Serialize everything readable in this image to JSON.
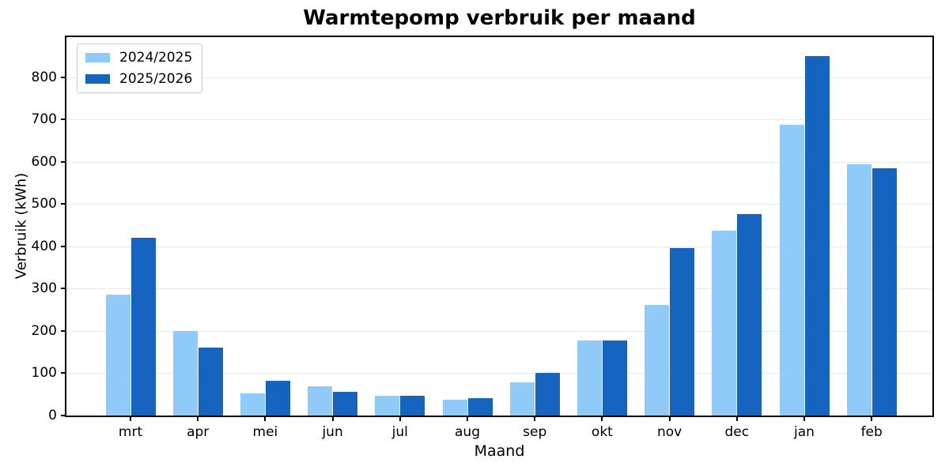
{
  "chart_data": {
    "type": "bar",
    "title": "Warmtepomp verbruik per maand",
    "xlabel": "Maand",
    "ylabel": "Verbruik (kWh)",
    "categories": [
      "mrt",
      "apr",
      "mei",
      "jun",
      "jul",
      "aug",
      "sep",
      "okt",
      "nov",
      "dec",
      "jan",
      "feb"
    ],
    "series": [
      {
        "name": "2024/2025",
        "color": "#90CAF9",
        "values": [
          285,
          200,
          53,
          70,
          47,
          38,
          78,
          177,
          262,
          437,
          688,
          595
        ]
      },
      {
        "name": "2025/2026",
        "color": "#1565C0",
        "values": [
          421,
          160,
          83,
          57,
          47,
          42,
          100,
          177,
          396,
          476,
          850,
          585
        ]
      }
    ],
    "ylim": [
      0,
      895
    ],
    "yticks": [
      0,
      100,
      200,
      300,
      400,
      500,
      600,
      700,
      800
    ],
    "grid": "horizontal",
    "legend_position": "upper-left"
  },
  "colors": {
    "grid": "#e9e9e9",
    "axis": "#000000",
    "legend_border": "#cccccc",
    "background": "#ffffff"
  }
}
